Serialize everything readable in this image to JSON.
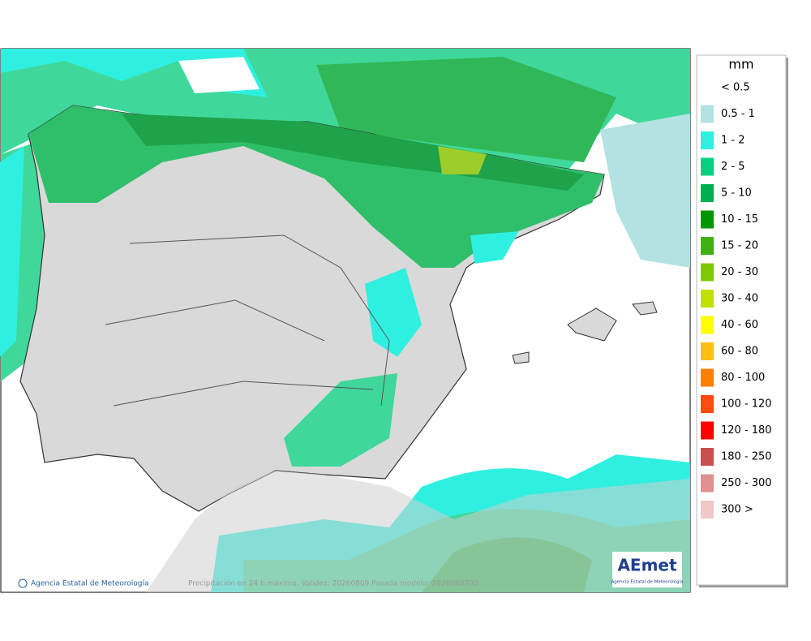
{
  "legend": {
    "unit": "mm",
    "items": [
      {
        "label": "< 0.5",
        "color": "#ffffff"
      },
      {
        "label": "0.5 - 1",
        "color": "#b4e2e2"
      },
      {
        "label": "1 - 2",
        "color": "#2ff0e0"
      },
      {
        "label": "2 - 5",
        "color": "#00d080"
      },
      {
        "label": "5 - 10",
        "color": "#00b050"
      },
      {
        "label": "10 - 15",
        "color": "#009600"
      },
      {
        "label": "15 - 20",
        "color": "#40b014"
      },
      {
        "label": "20 - 30",
        "color": "#80c800"
      },
      {
        "label": "30 - 40",
        "color": "#c0e000"
      },
      {
        "label": "40 - 60",
        "color": "#ffff00"
      },
      {
        "label": "60 - 80",
        "color": "#ffbf10"
      },
      {
        "label": "80 - 100",
        "color": "#ff8000"
      },
      {
        "label": "100 - 120",
        "color": "#ff4a10"
      },
      {
        "label": "120 - 180",
        "color": "#ff0000"
      },
      {
        "label": "180 - 250",
        "color": "#c85050"
      },
      {
        "label": "250 - 300",
        "color": "#e09090"
      },
      {
        "label": "300 >",
        "color": "#f0c8c8"
      }
    ]
  },
  "footer": {
    "credit": "Agencia Estatal de Meteorología",
    "caption": "Precipitación en 24 h máxima. Validez: 20260809 Pasada modelo: 2026080700"
  },
  "logo": {
    "name": "AEmet",
    "subtitle": "Agencia Estatal de Meteorología"
  }
}
